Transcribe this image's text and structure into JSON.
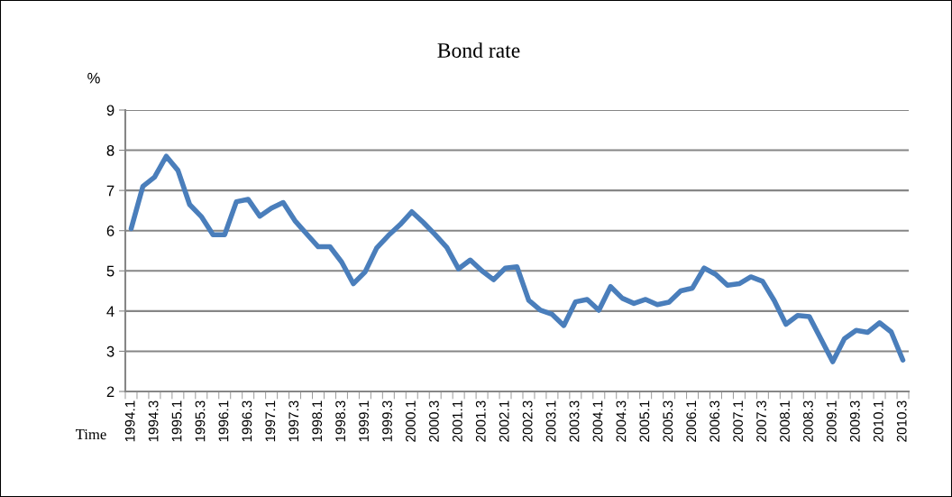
{
  "chart_data": {
    "type": "line",
    "title": "Bond rate",
    "xlabel": "Time",
    "ylabel": "%",
    "categories": [
      "1994.1",
      null,
      "1994.3",
      null,
      "1995.1",
      null,
      "1995.3",
      null,
      "1996.1",
      null,
      "1996.3",
      null,
      "1997.1",
      null,
      "1997.3",
      null,
      "1998.1",
      null,
      "1998.3",
      null,
      "1999.1",
      null,
      "1999.3",
      null,
      "2000.1",
      null,
      "2000.3",
      null,
      "2001.1",
      null,
      "2001.3",
      null,
      "2002.1",
      null,
      "2002.3",
      null,
      "2003.1",
      null,
      "2003.3",
      null,
      "2004.1",
      null,
      "2004.3",
      null,
      "2005.1",
      null,
      "2005.3",
      null,
      "2006.1",
      null,
      "2006.3",
      null,
      "2007.1",
      null,
      "2007.3",
      null,
      "2008.1",
      null,
      "2008.3",
      null,
      "2009.1",
      null,
      "2009.3",
      null,
      "2010.1",
      null,
      "2010.3"
    ],
    "series": [
      {
        "color": "#4a7ebb",
        "values": [
          6.05,
          7.1,
          7.33,
          7.85,
          7.5,
          6.65,
          6.35,
          5.9,
          5.9,
          6.72,
          6.78,
          6.36,
          6.56,
          6.7,
          6.25,
          5.92,
          5.6,
          5.6,
          5.22,
          4.68,
          4.97,
          5.57,
          5.88,
          6.15,
          6.47,
          6.2,
          5.9,
          5.58,
          5.05,
          5.27,
          5.0,
          4.78,
          5.07,
          5.1,
          4.27,
          4.02,
          3.92,
          3.64,
          4.23,
          4.29,
          4.02,
          4.61,
          4.32,
          4.19,
          4.29,
          4.16,
          4.22,
          4.5,
          4.57,
          5.07,
          4.91,
          4.64,
          4.68,
          4.85,
          4.74,
          4.26,
          3.67,
          3.89,
          3.86,
          3.3,
          2.74,
          3.31,
          3.52,
          3.47,
          3.71,
          3.48,
          2.78
        ]
      }
    ],
    "ylim": [
      2,
      9
    ],
    "yticks": [
      2,
      3,
      4,
      5,
      6,
      7,
      8,
      9
    ],
    "grid": "y",
    "legend": false,
    "marker": "none",
    "line_style": "solid"
  }
}
